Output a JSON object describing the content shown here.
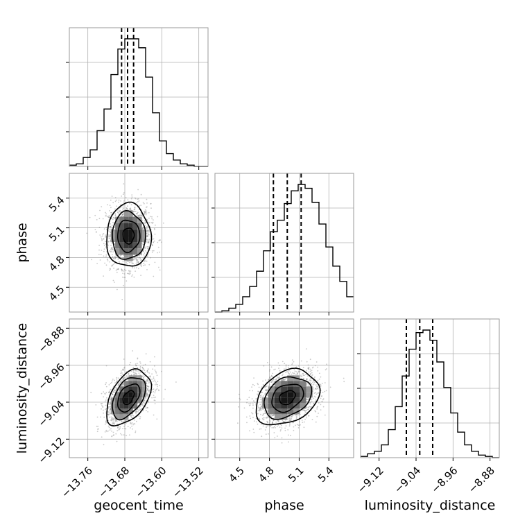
{
  "chart_data": {
    "type": "corner",
    "parameters": [
      "geocent_time",
      "phase",
      "luminosity_distance"
    ],
    "axis_labels": {
      "x": [
        "geocent_time",
        "phase",
        "luminosity_distance"
      ],
      "y": [
        "phase",
        "luminosity_distance"
      ]
    },
    "ranges": {
      "geocent_time": [
        -13.8,
        -13.5
      ],
      "phase": [
        4.25,
        5.65
      ],
      "luminosity_distance": [
        -9.16,
        -8.86
      ]
    },
    "ticks": {
      "geocent_time": [
        -13.76,
        -13.68,
        -13.6,
        -13.52
      ],
      "phase": [
        4.5,
        4.8,
        5.1,
        5.4
      ],
      "luminosity_distance": [
        -9.12,
        -9.04,
        -8.96,
        -8.88
      ]
    },
    "tick_labels": {
      "geocent_time": [
        "−13.76",
        "−13.68",
        "−13.60",
        "−13.52"
      ],
      "phase": [
        "4.5",
        "4.8",
        "5.1",
        "5.4"
      ],
      "luminosity_distance": [
        "−9.12",
        "−9.04",
        "−8.96",
        "−8.88"
      ]
    },
    "quantiles": {
      "geocent_time": [
        -13.687,
        -13.674,
        -13.661
      ],
      "phase": [
        4.84,
        4.98,
        5.12
      ],
      "luminosity_distance": [
        -9.061,
        -9.032,
        -9.004
      ]
    },
    "histograms": {
      "geocent_time": {
        "edges": [
          -13.8,
          -13.785,
          -13.77,
          -13.755,
          -13.74,
          -13.725,
          -13.71,
          -13.695,
          -13.68,
          -13.665,
          -13.65,
          -13.635,
          -13.62,
          -13.605,
          -13.59,
          -13.575,
          -13.56,
          -13.545,
          -13.53,
          -13.515,
          -13.5
        ],
        "counts": [
          0.01,
          0.02,
          0.07,
          0.13,
          0.28,
          0.45,
          0.72,
          0.92,
          1.0,
          1.0,
          0.93,
          0.7,
          0.42,
          0.2,
          0.1,
          0.05,
          0.02,
          0.01,
          0.0,
          0.0
        ]
      },
      "phase": {
        "edges": [
          4.25,
          4.32,
          4.39,
          4.46,
          4.53,
          4.6,
          4.67,
          4.74,
          4.81,
          4.88,
          4.95,
          5.02,
          5.09,
          5.16,
          5.23,
          5.3,
          5.37,
          5.44,
          5.51,
          5.58,
          5.65
        ],
        "counts": [
          0.0,
          0.01,
          0.03,
          0.06,
          0.12,
          0.2,
          0.32,
          0.48,
          0.63,
          0.72,
          0.85,
          0.95,
          1.0,
          0.97,
          0.86,
          0.69,
          0.51,
          0.36,
          0.24,
          0.12
        ]
      },
      "luminosity_distance": {
        "edges": [
          -9.16,
          -9.145,
          -9.13,
          -9.115,
          -9.1,
          -9.085,
          -9.07,
          -9.055,
          -9.04,
          -9.025,
          -9.01,
          -8.995,
          -8.98,
          -8.965,
          -8.95,
          -8.935,
          -8.92,
          -8.905,
          -8.89,
          -8.875,
          -8.86
        ],
        "counts": [
          0.01,
          0.03,
          0.05,
          0.1,
          0.22,
          0.4,
          0.64,
          0.85,
          0.98,
          1.0,
          0.92,
          0.75,
          0.55,
          0.35,
          0.2,
          0.1,
          0.05,
          0.02,
          0.01,
          0.0
        ]
      }
    },
    "joint_2d": [
      {
        "x": "geocent_time",
        "y": "phase",
        "center": [
          -13.672,
          5.02
        ],
        "sigma": [
          0.024,
          0.16
        ],
        "correlation": 0.0,
        "contour_levels_sigma": [
          0.5,
          1.0,
          1.5,
          2.0
        ]
      },
      {
        "x": "geocent_time",
        "y": "luminosity_distance",
        "center": [
          -13.672,
          -9.03
        ],
        "sigma": [
          0.024,
          0.03
        ],
        "correlation": 0.45,
        "contour_levels_sigma": [
          0.5,
          1.0,
          1.5,
          2.0
        ]
      },
      {
        "x": "phase",
        "y": "luminosity_distance",
        "center": [
          4.98,
          -9.03
        ],
        "sigma": [
          0.16,
          0.03
        ],
        "correlation": 0.3,
        "contour_levels_sigma": [
          0.5,
          1.0,
          1.5,
          2.0
        ]
      }
    ],
    "grid": true,
    "colors": {
      "line": "#000000",
      "grid": "#b0b0b0",
      "points": "#888888",
      "density_dark": "#111111",
      "density_light": "#e6e6e6",
      "frame": "#999999"
    }
  }
}
